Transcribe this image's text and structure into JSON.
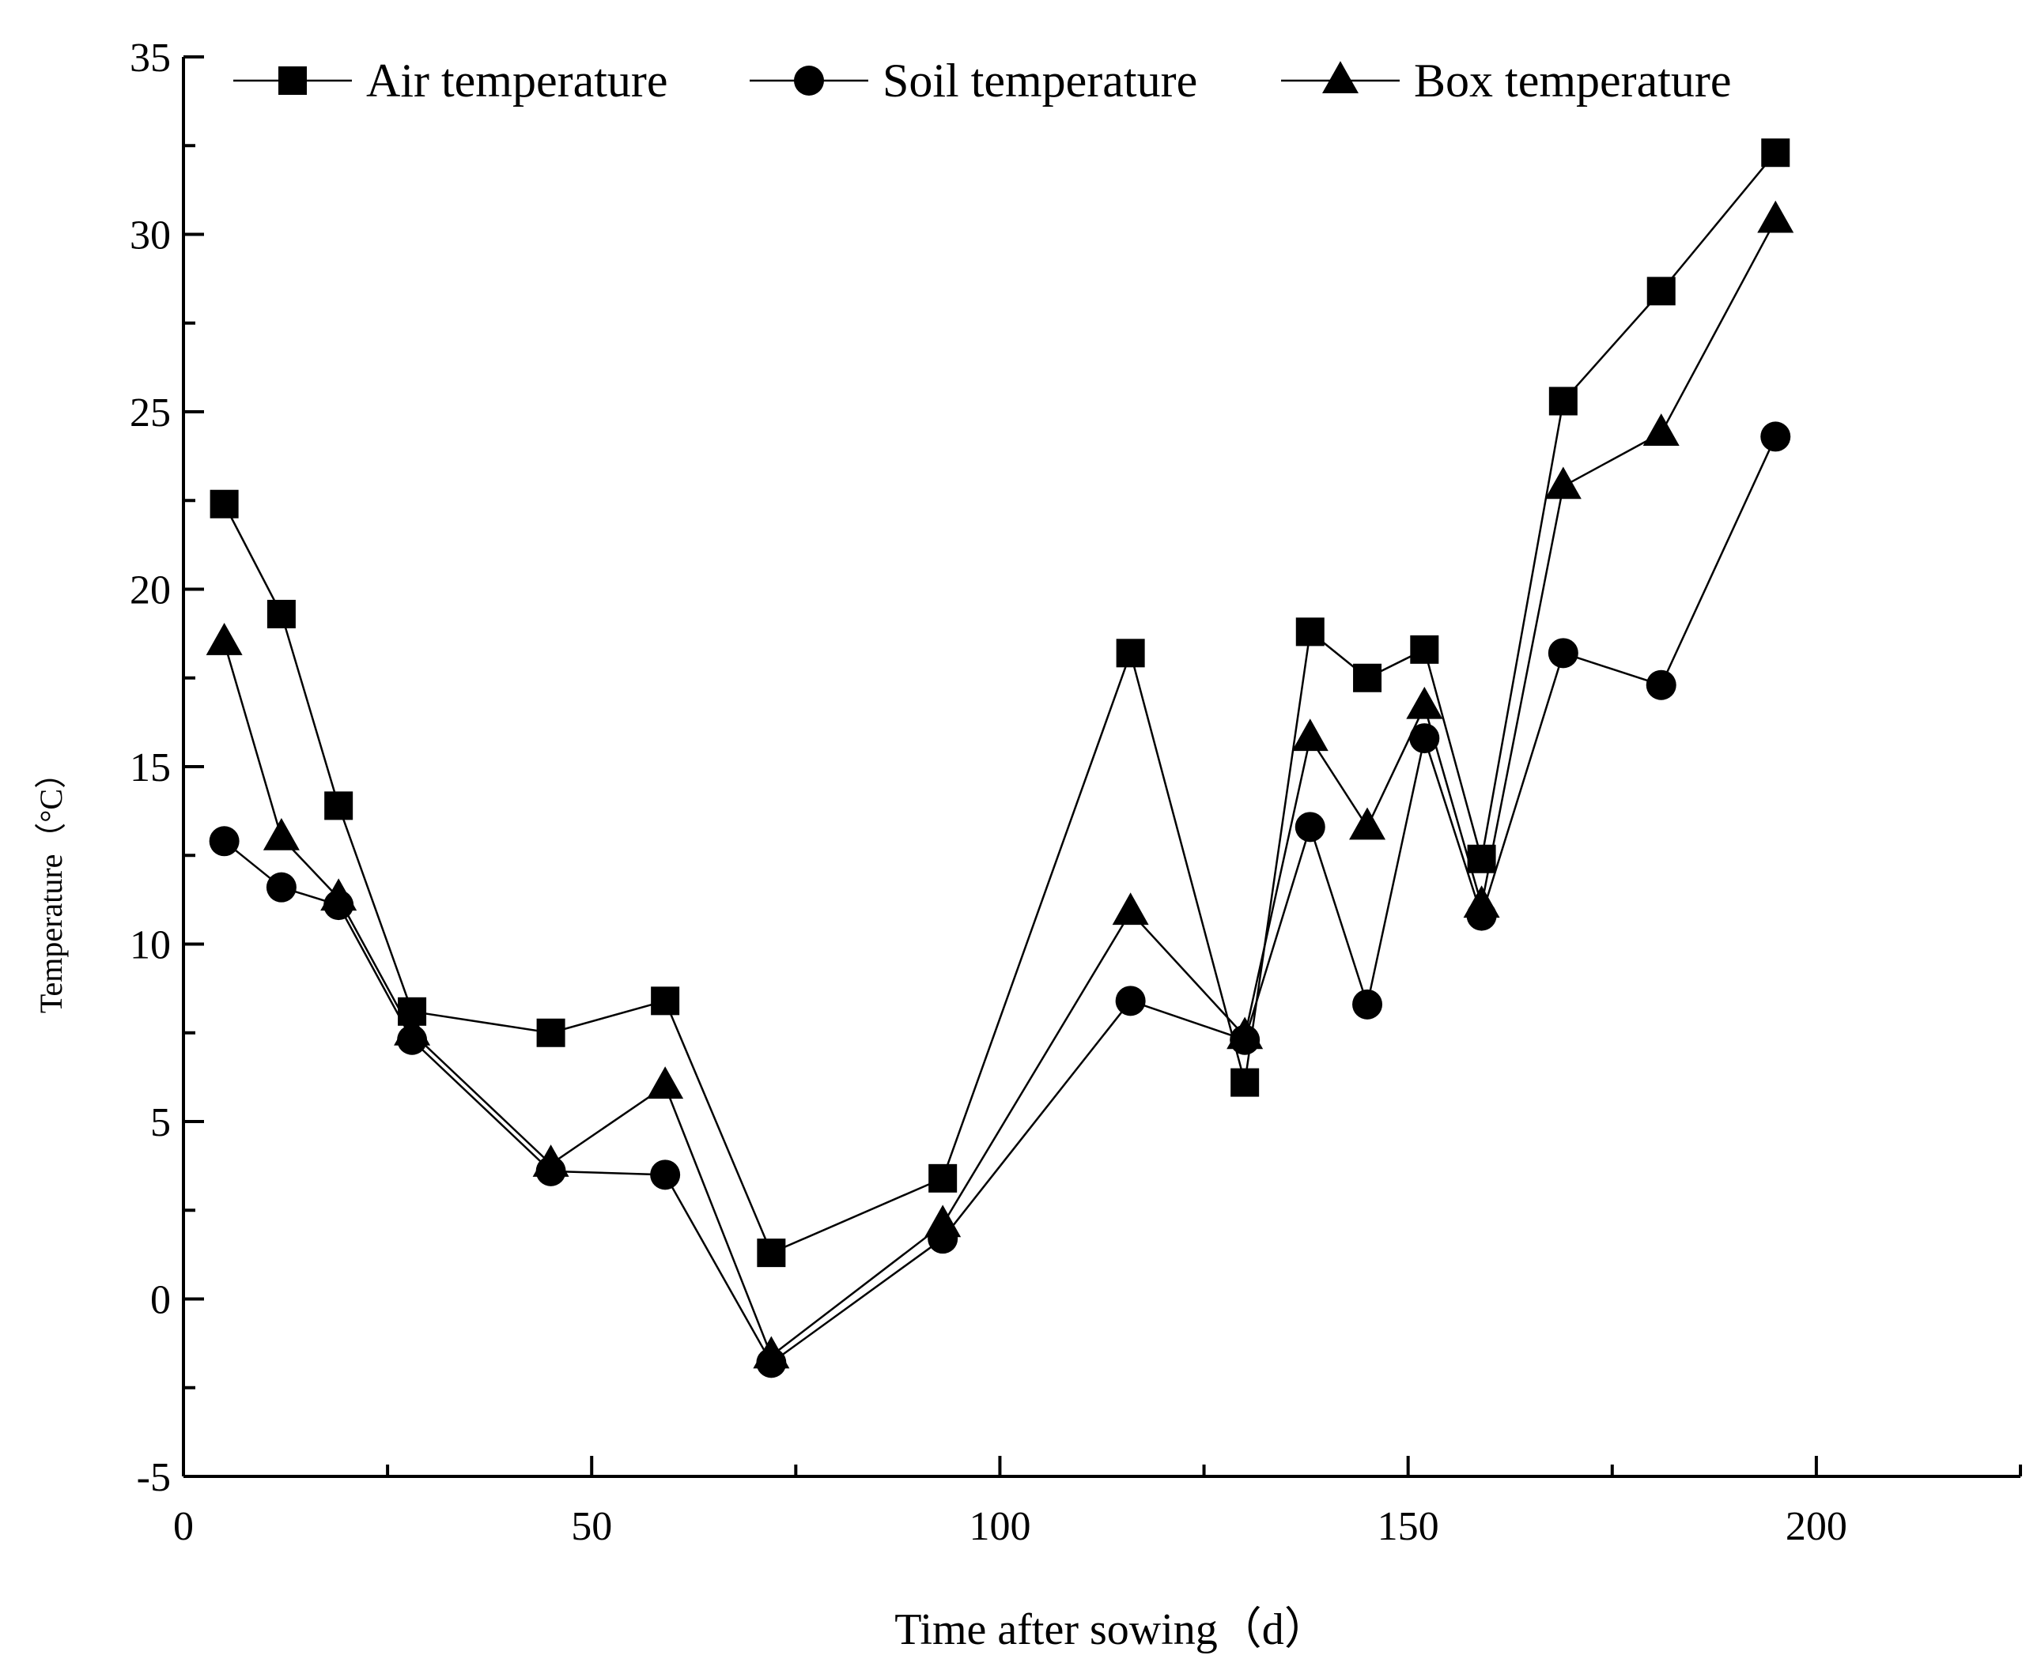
{
  "chart_data": {
    "type": "line",
    "title": "",
    "xlabel": "Time after sowing（d）",
    "ylabel": "Temperature（°C）",
    "xlim": [
      0,
      225
    ],
    "ylim": [
      -5,
      35
    ],
    "x_ticks": [
      0,
      50,
      100,
      150,
      200
    ],
    "x_tick_labels": [
      "0",
      "50",
      "100",
      "150",
      "200"
    ],
    "x_minor_ticks": [
      25,
      75,
      125,
      175,
      225
    ],
    "y_ticks": [
      -5,
      0,
      5,
      10,
      15,
      20,
      25,
      30,
      35
    ],
    "y_tick_labels": [
      "-5",
      "0",
      "5",
      "10",
      "15",
      "20",
      "25",
      "30",
      "35"
    ],
    "grid": false,
    "legend_position": "top",
    "x": [
      5,
      12,
      19,
      28,
      45,
      59,
      72,
      93,
      116,
      130,
      138,
      145,
      152,
      159,
      169,
      181,
      195
    ],
    "series": [
      {
        "name": "Air temperature",
        "marker": "square",
        "values": [
          22.4,
          19.3,
          13.9,
          8.1,
          7.5,
          8.4,
          1.3,
          3.4,
          18.2,
          6.1,
          18.8,
          17.5,
          18.3,
          12.4,
          25.3,
          28.4,
          32.3
        ]
      },
      {
        "name": "Soil temperature",
        "marker": "circle",
        "values": [
          12.9,
          11.6,
          11.1,
          7.3,
          3.6,
          3.5,
          -1.8,
          1.7,
          8.4,
          7.3,
          13.3,
          8.3,
          15.8,
          10.8,
          18.2,
          17.3,
          24.3
        ]
      },
      {
        "name": "Box temperature",
        "marker": "triangle",
        "values": [
          18.5,
          13.0,
          11.3,
          7.5,
          3.8,
          6.0,
          -1.6,
          2.1,
          10.9,
          7.4,
          15.8,
          13.3,
          16.7,
          11.1,
          22.9,
          24.4,
          30.4
        ]
      }
    ],
    "colors": {
      "line": "#000000",
      "marker": "#000000",
      "background": "#ffffff"
    }
  }
}
